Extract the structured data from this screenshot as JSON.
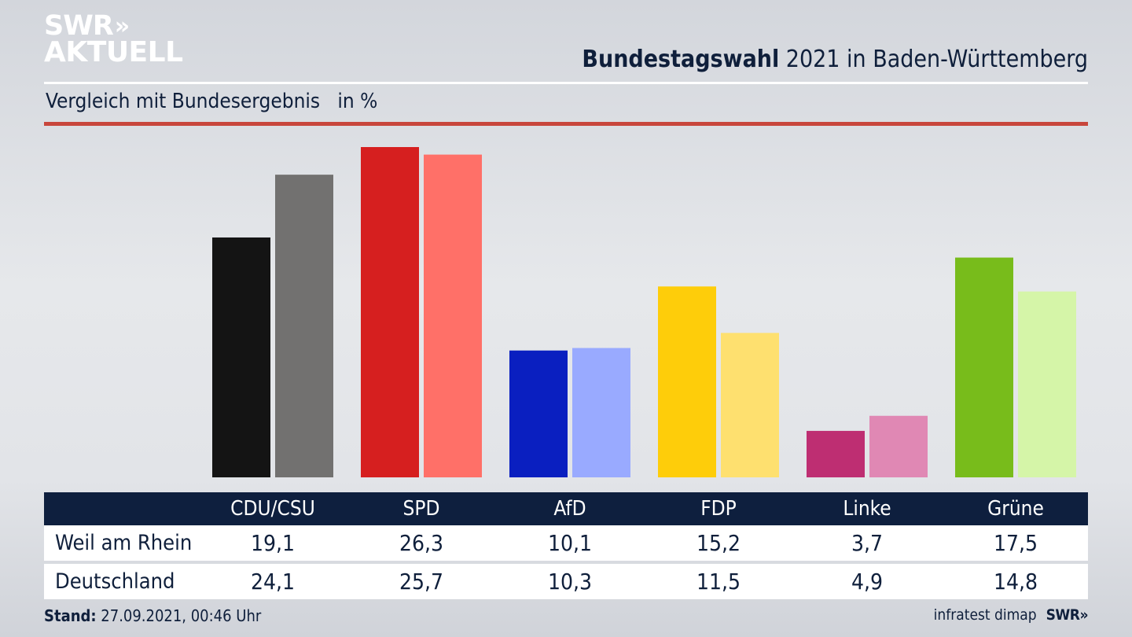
{
  "brand": {
    "logo_line1": "SWR",
    "logo_chevrons": "»",
    "logo_line2": "AKTUELL"
  },
  "header": {
    "title_bold": "Bundestagswahl",
    "title_rest": " 2021 in Baden-Württemberg",
    "subtitle": "Vergleich mit Bundesergebnis   in %"
  },
  "colors": {
    "background": "#e3e5e9",
    "navy": "#0e1f3e",
    "accent_line": "#c8463c"
  },
  "chart_data": {
    "type": "bar",
    "title": "Bundestagswahl 2021 in Baden-Württemberg",
    "subtitle": "Vergleich mit Bundesergebnis in %",
    "xlabel": "",
    "ylabel": "%",
    "ylim": [
      0,
      26.3
    ],
    "grid": false,
    "legend": "none (rows in table below)",
    "categories": [
      "CDU/CSU",
      "SPD",
      "AfD",
      "FDP",
      "Linke",
      "Grüne"
    ],
    "series": [
      {
        "name": "Weil am Rhein",
        "values": [
          19.1,
          26.3,
          10.1,
          15.2,
          3.7,
          17.5
        ],
        "labels": [
          "19,1",
          "26,3",
          "10,1",
          "15,2",
          "3,7",
          "17,5"
        ],
        "colors": [
          "#141414",
          "#d61f1f",
          "#0a1fc0",
          "#fecd0a",
          "#be2e72",
          "#78bc1b"
        ]
      },
      {
        "name": "Deutschland",
        "values": [
          24.1,
          25.7,
          10.3,
          11.5,
          4.9,
          14.8
        ],
        "labels": [
          "24,1",
          "25,7",
          "10,3",
          "11,5",
          "4,9",
          "14,8"
        ],
        "colors": [
          "#727170",
          "#ff7068",
          "#99aaff",
          "#fee06f",
          "#e088b4",
          "#d5f5a8"
        ]
      }
    ]
  },
  "footer": {
    "stand_label": "Stand:",
    "stand_value": " 27.09.2021, 00:46 Uhr",
    "source": "infratest dimap",
    "brand": "SWR»"
  }
}
